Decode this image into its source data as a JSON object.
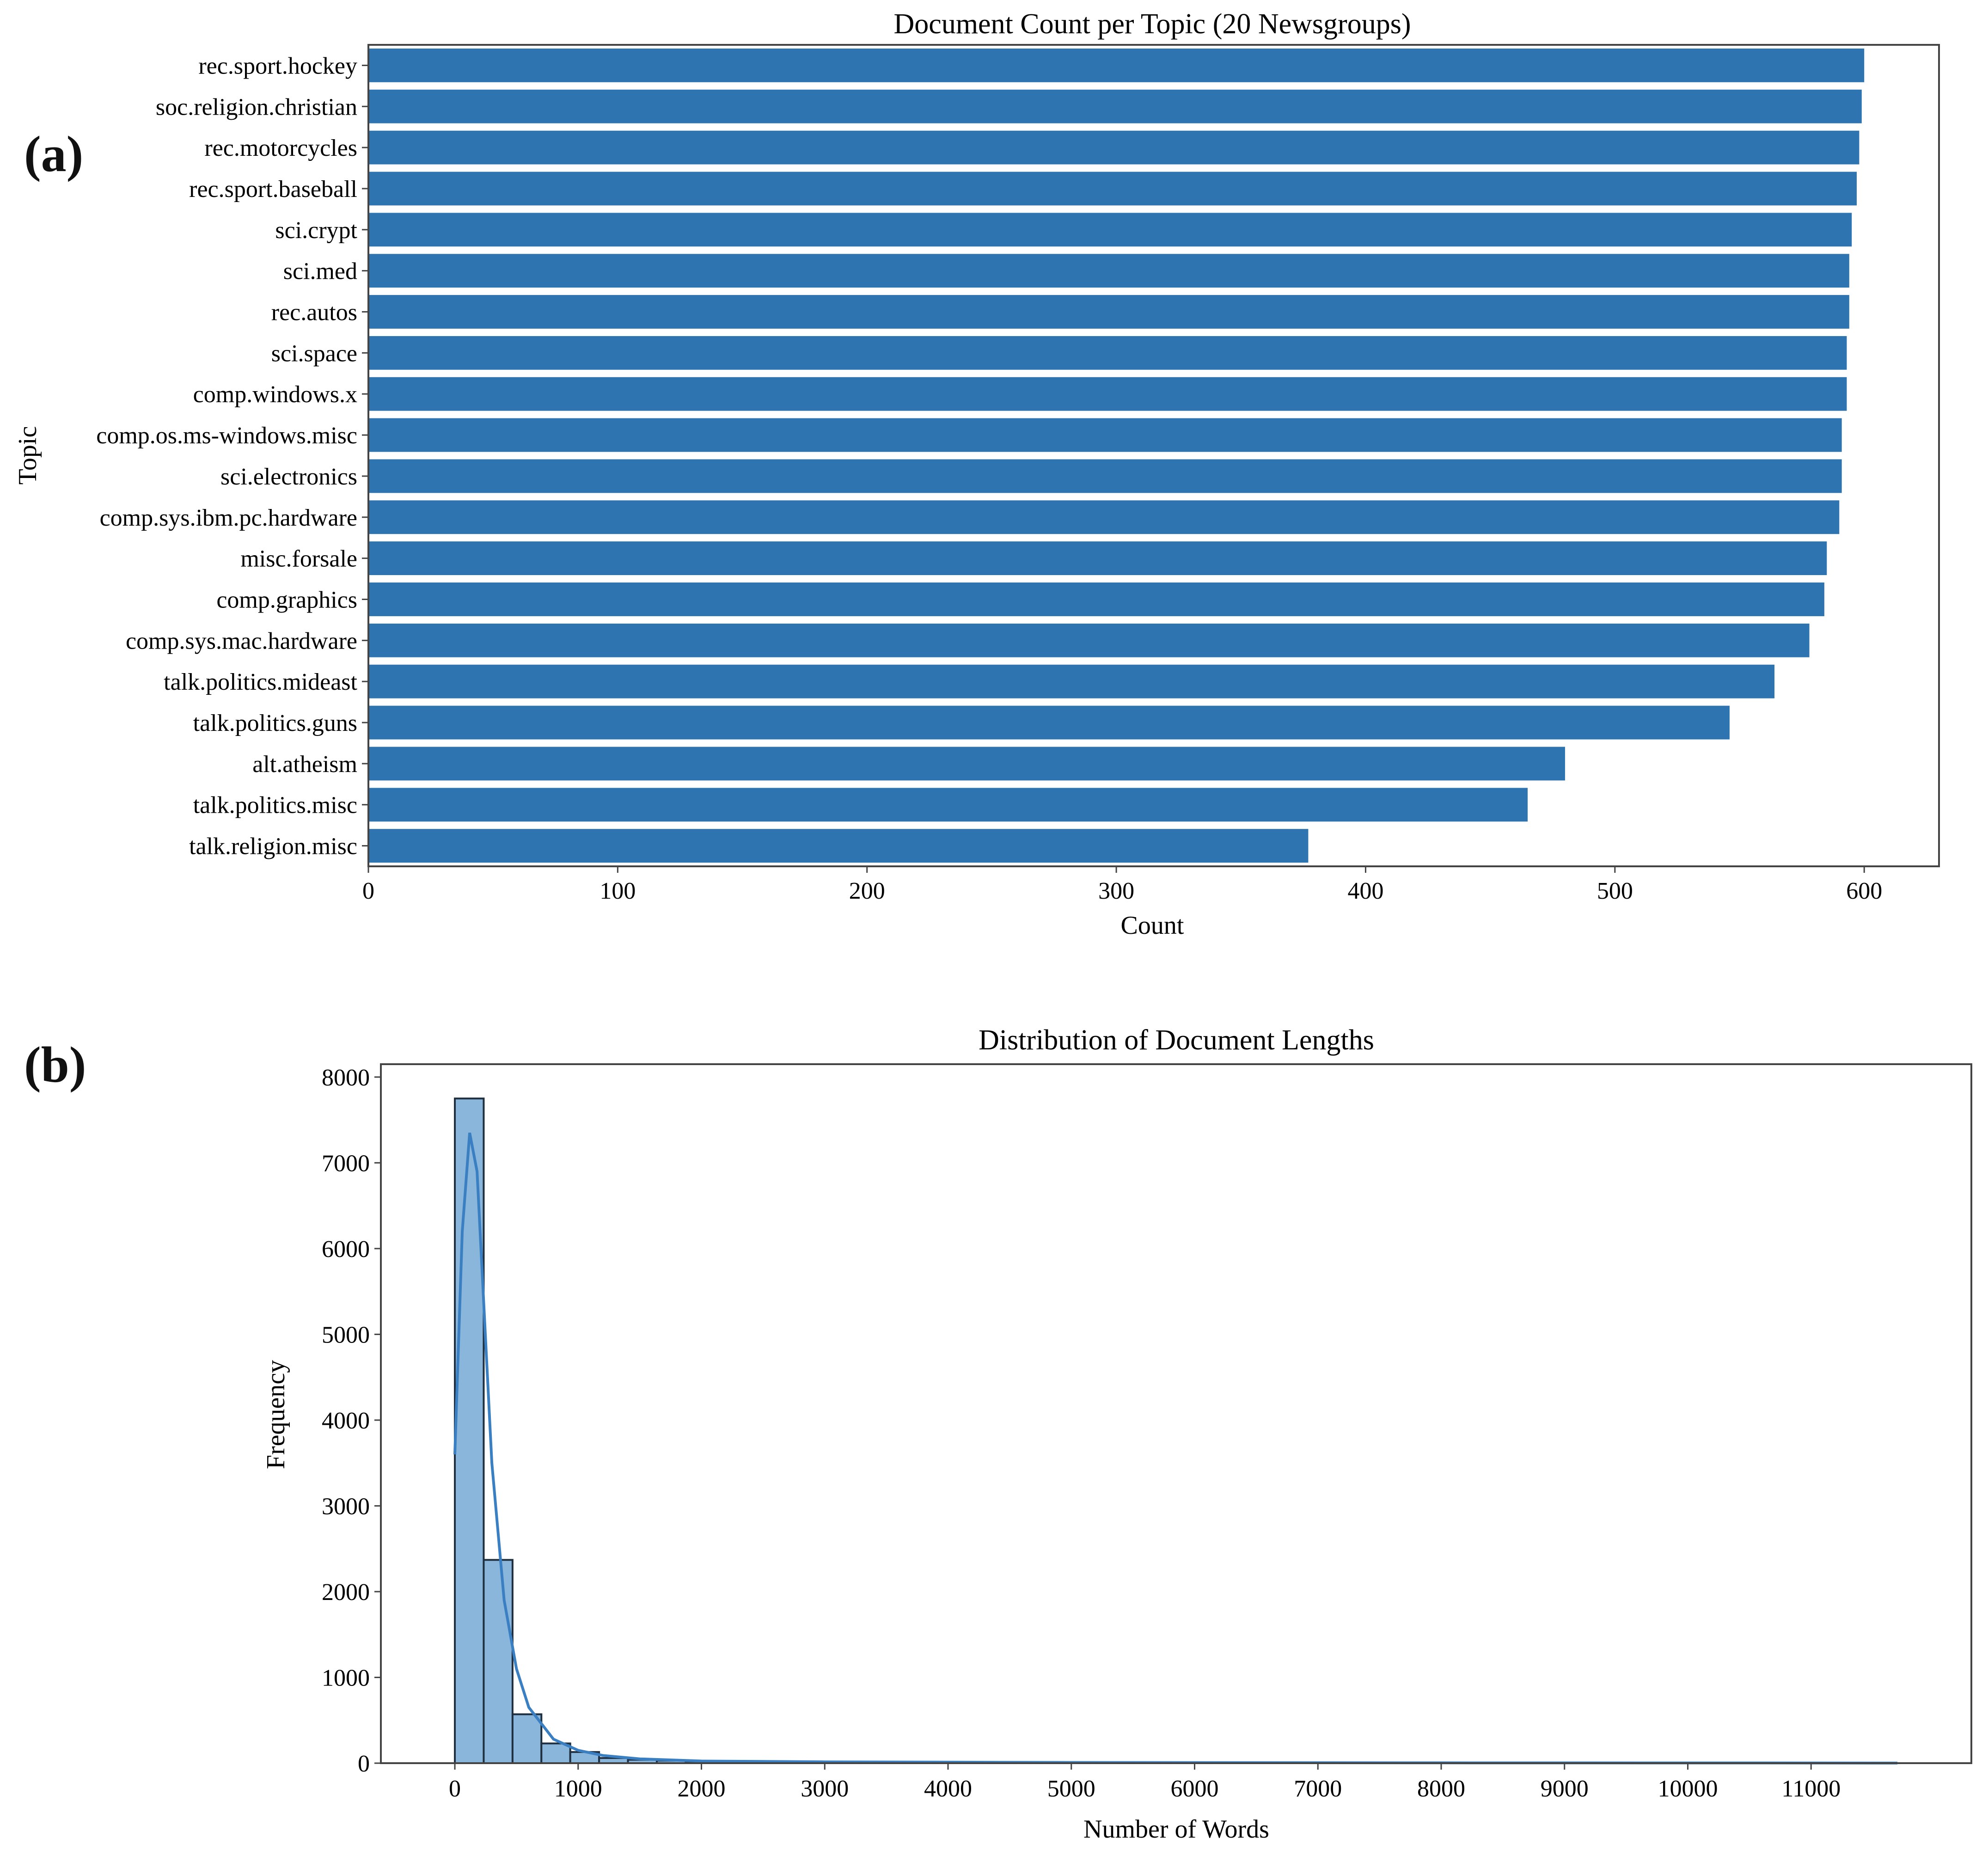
{
  "panel_labels": {
    "a": "(a)",
    "b": "(b)"
  },
  "colors": {
    "bar": "#2e74b0",
    "hist_fill": "#8ab6dc",
    "hist_edge": "#1f2f3f",
    "kde": "#3a7fc2",
    "frame": "#444444"
  },
  "chart_data": [
    {
      "type": "bar",
      "orientation": "horizontal",
      "title": "Document Count per Topic (20 Newsgroups)",
      "xlabel": "Count",
      "ylabel": "Topic",
      "xlim": [
        0,
        630
      ],
      "xticks": [
        0,
        100,
        200,
        300,
        400,
        500,
        600
      ],
      "categories": [
        "rec.sport.hockey",
        "soc.religion.christian",
        "rec.motorcycles",
        "rec.sport.baseball",
        "sci.crypt",
        "sci.med",
        "rec.autos",
        "sci.space",
        "comp.windows.x",
        "comp.os.ms-windows.misc",
        "sci.electronics",
        "comp.sys.ibm.pc.hardware",
        "misc.forsale",
        "comp.graphics",
        "comp.sys.mac.hardware",
        "talk.politics.mideast",
        "talk.politics.guns",
        "alt.atheism",
        "talk.politics.misc",
        "talk.religion.misc"
      ],
      "values": [
        600,
        599,
        598,
        597,
        595,
        594,
        594,
        593,
        593,
        591,
        591,
        590,
        585,
        584,
        578,
        564,
        546,
        480,
        465,
        377
      ]
    },
    {
      "type": "bar",
      "subtype": "histogram",
      "title": "Distribution of Document Lengths",
      "xlabel": "Number of Words",
      "ylabel": "Frequency",
      "xlim": [
        -600,
        12300
      ],
      "ylim": [
        0,
        8150
      ],
      "xticks": [
        0,
        1000,
        2000,
        3000,
        4000,
        5000,
        6000,
        7000,
        8000,
        9000,
        10000,
        11000
      ],
      "yticks": [
        0,
        1000,
        2000,
        3000,
        4000,
        5000,
        6000,
        7000,
        8000
      ],
      "bin_width": 234,
      "bins_start": 0,
      "values": [
        7750,
        2370,
        570,
        230,
        130,
        60,
        40,
        30,
        20,
        12,
        8,
        6,
        4,
        3,
        3,
        2,
        2,
        2,
        1,
        1,
        1,
        1,
        1,
        1,
        1,
        1,
        1,
        1,
        1,
        1,
        0,
        1,
        0,
        0,
        1,
        0,
        0,
        0,
        0,
        0,
        0,
        0,
        0,
        0,
        0,
        1
      ],
      "kde": {
        "x": [
          0,
          60,
          120,
          180,
          240,
          300,
          400,
          500,
          600,
          800,
          1000,
          1200,
          1500,
          2000,
          3000,
          5000,
          8000,
          11000,
          11700
        ],
        "y": [
          3600,
          6200,
          7350,
          6900,
          5200,
          3500,
          1900,
          1100,
          650,
          280,
          150,
          90,
          50,
          25,
          15,
          8,
          4,
          2,
          1
        ]
      }
    }
  ]
}
